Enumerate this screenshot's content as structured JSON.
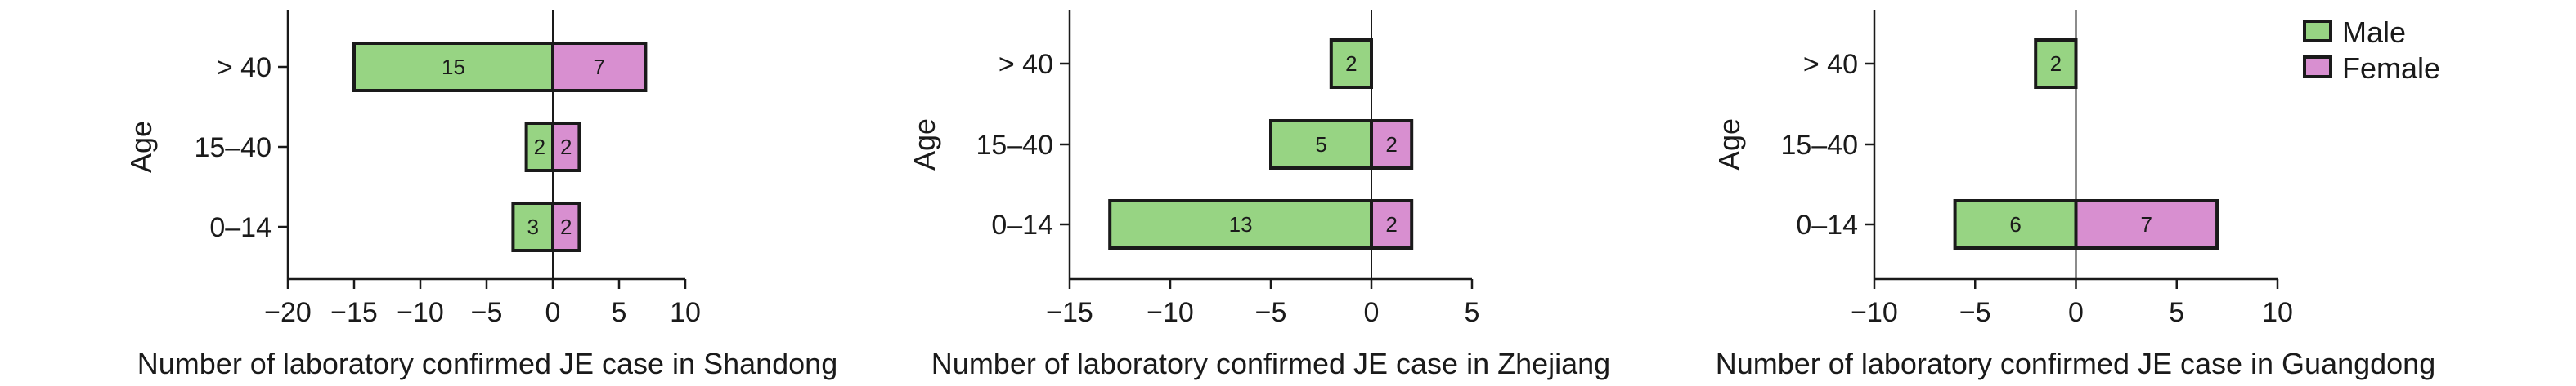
{
  "colors": {
    "male": "#97d483",
    "female": "#d88fd0",
    "stroke": "#1a1a1a"
  },
  "legend": {
    "placement": "top-right",
    "items": [
      {
        "key": "male",
        "label": "Male"
      },
      {
        "key": "female",
        "label": "Female"
      }
    ]
  },
  "chart_data": [
    {
      "type": "bar",
      "orientation": "horizontal-diverging",
      "xlabel": "Number of laboratory confirmed JE case in Shandong",
      "ylabel": "Age",
      "categories": [
        "> 40",
        "15–40",
        "0–14"
      ],
      "xlim": [
        -20,
        10
      ],
      "xticks": [
        -20,
        -15,
        -10,
        -5,
        0,
        5,
        10
      ],
      "xtick_labels": [
        "−20",
        "−15",
        "−10",
        "−5",
        "0",
        "5",
        "10"
      ],
      "series": [
        {
          "name": "Male",
          "values": [
            15,
            2,
            3
          ],
          "labels": [
            "15",
            "2",
            "3"
          ]
        },
        {
          "name": "Female",
          "values": [
            7,
            2,
            2
          ],
          "labels": [
            "7",
            "2",
            "2"
          ]
        }
      ]
    },
    {
      "type": "bar",
      "orientation": "horizontal-diverging",
      "xlabel": "Number of laboratory confirmed JE case in Zhejiang",
      "ylabel": "Age",
      "categories": [
        "> 40",
        "15–40",
        "0–14"
      ],
      "xlim": [
        -15,
        5
      ],
      "xticks": [
        -15,
        -10,
        -5,
        0,
        5
      ],
      "xtick_labels": [
        "−15",
        "−10",
        "−5",
        "0",
        "5"
      ],
      "series": [
        {
          "name": "Male",
          "values": [
            2,
            5,
            13
          ],
          "labels": [
            "2",
            "5",
            "13"
          ]
        },
        {
          "name": "Female",
          "values": [
            0,
            2,
            2
          ],
          "labels": [
            "",
            "2",
            "2"
          ]
        }
      ]
    },
    {
      "type": "bar",
      "orientation": "horizontal-diverging",
      "xlabel": "Number of laboratory confirmed JE case in Guangdong",
      "ylabel": "Age",
      "categories": [
        "> 40",
        "15–40",
        "0–14"
      ],
      "xlim": [
        -10,
        10
      ],
      "xticks": [
        -10,
        -5,
        0,
        5,
        10
      ],
      "xtick_labels": [
        "−10",
        "−5",
        "0",
        "5",
        "10"
      ],
      "series": [
        {
          "name": "Male",
          "values": [
            2,
            0,
            6
          ],
          "labels": [
            "2",
            "",
            "6"
          ]
        },
        {
          "name": "Female",
          "values": [
            0,
            0,
            7
          ],
          "labels": [
            "",
            "",
            "7"
          ]
        }
      ]
    }
  ]
}
